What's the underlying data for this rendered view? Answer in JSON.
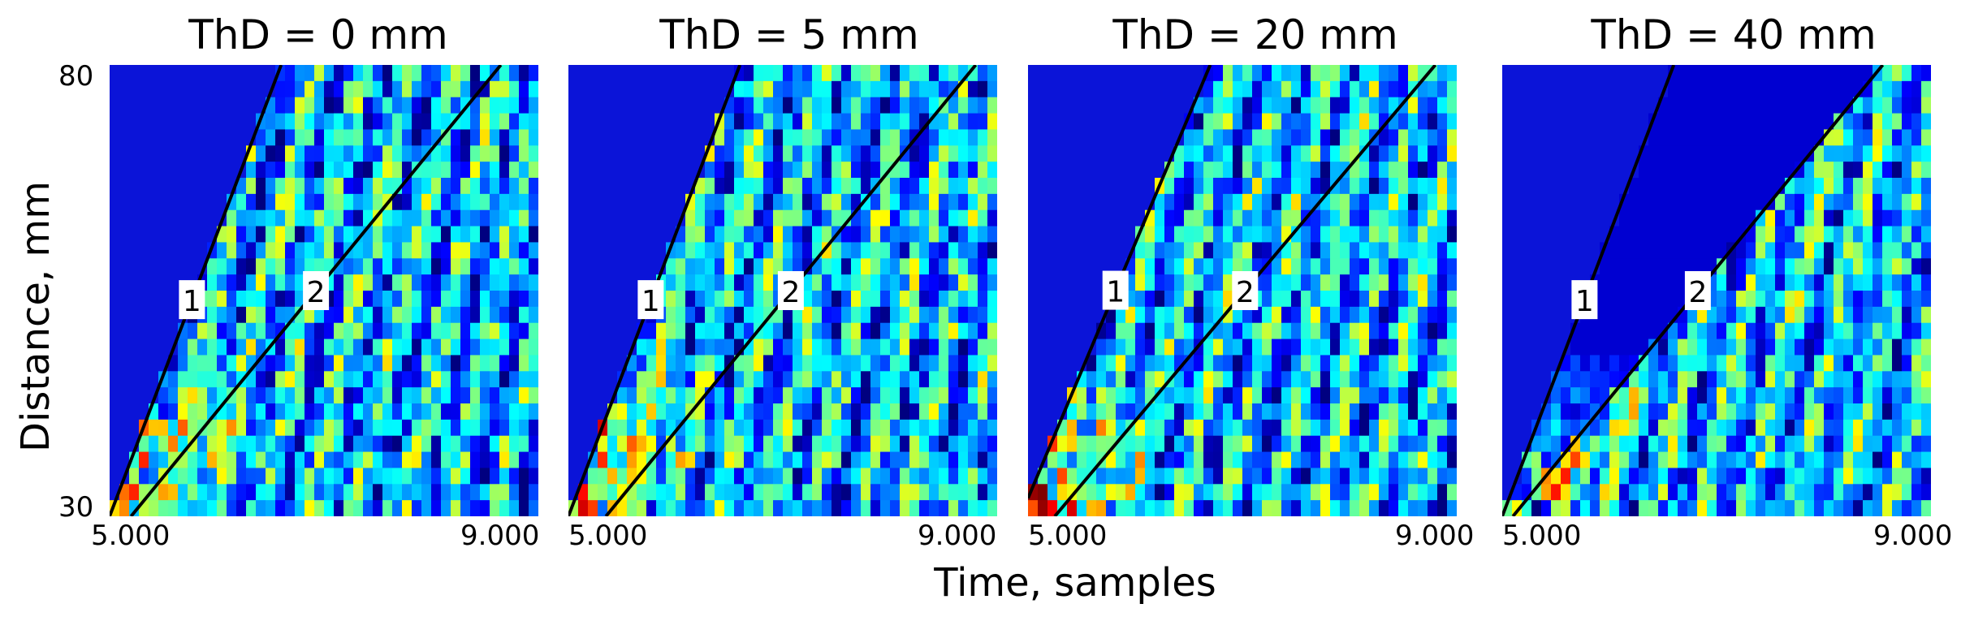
{
  "chart_data": [
    {
      "type": "heatmap",
      "title": "ThD = 0 mm",
      "xlabel": "Time, samples",
      "ylabel": "Distance, mm",
      "xlim": [
        5000,
        9000
      ],
      "ylim": [
        30,
        80
      ],
      "x_ticks": [
        "5.000",
        "9.000"
      ],
      "y_ticks": [
        "30",
        "80"
      ],
      "lines": [
        {
          "label": "1",
          "from": [
            5000,
            30
          ],
          "to": [
            6600,
            80
          ]
        },
        {
          "label": "2",
          "from": [
            5200,
            30
          ],
          "to": [
            8650,
            80
          ]
        }
      ],
      "colormap": "jet",
      "intensity_note": "highest intensity (yellow/red) near 5200-6000 samples, 30-50 mm"
    },
    {
      "type": "heatmap",
      "title": "ThD = 5 mm",
      "xlim": [
        5000,
        9000
      ],
      "ylim": [
        30,
        80
      ],
      "x_ticks": [
        "5.000",
        "9.000"
      ],
      "lines": [
        {
          "label": "1",
          "from": [
            5000,
            30
          ],
          "to": [
            6600,
            80
          ]
        },
        {
          "label": "2",
          "from": [
            5350,
            30
          ],
          "to": [
            8800,
            80
          ]
        }
      ],
      "colormap": "jet"
    },
    {
      "type": "heatmap",
      "title": "ThD = 20 mm",
      "xlim": [
        5000,
        9000
      ],
      "ylim": [
        30,
        80
      ],
      "x_ticks": [
        "5.000",
        "9.000"
      ],
      "lines": [
        {
          "label": "1",
          "from": [
            5000,
            32
          ],
          "to": [
            6700,
            80
          ]
        },
        {
          "label": "2",
          "from": [
            5250,
            30
          ],
          "to": [
            8800,
            80
          ]
        }
      ],
      "colormap": "jet"
    },
    {
      "type": "heatmap",
      "title": "ThD = 40 mm",
      "xlim": [
        5000,
        9000
      ],
      "ylim": [
        30,
        80
      ],
      "x_ticks": [
        "5.000",
        "9.000"
      ],
      "lines": [
        {
          "label": "1",
          "from": [
            5000,
            30
          ],
          "to": [
            6600,
            80
          ]
        },
        {
          "label": "2",
          "from": [
            5100,
            30
          ],
          "to": [
            8550,
            80
          ]
        }
      ],
      "colormap": "jet"
    }
  ],
  "figure": {
    "xlabel": "Time, samples",
    "ylabel": "Distance, mm",
    "y_tick_top": "80",
    "y_tick_bottom": "30"
  }
}
